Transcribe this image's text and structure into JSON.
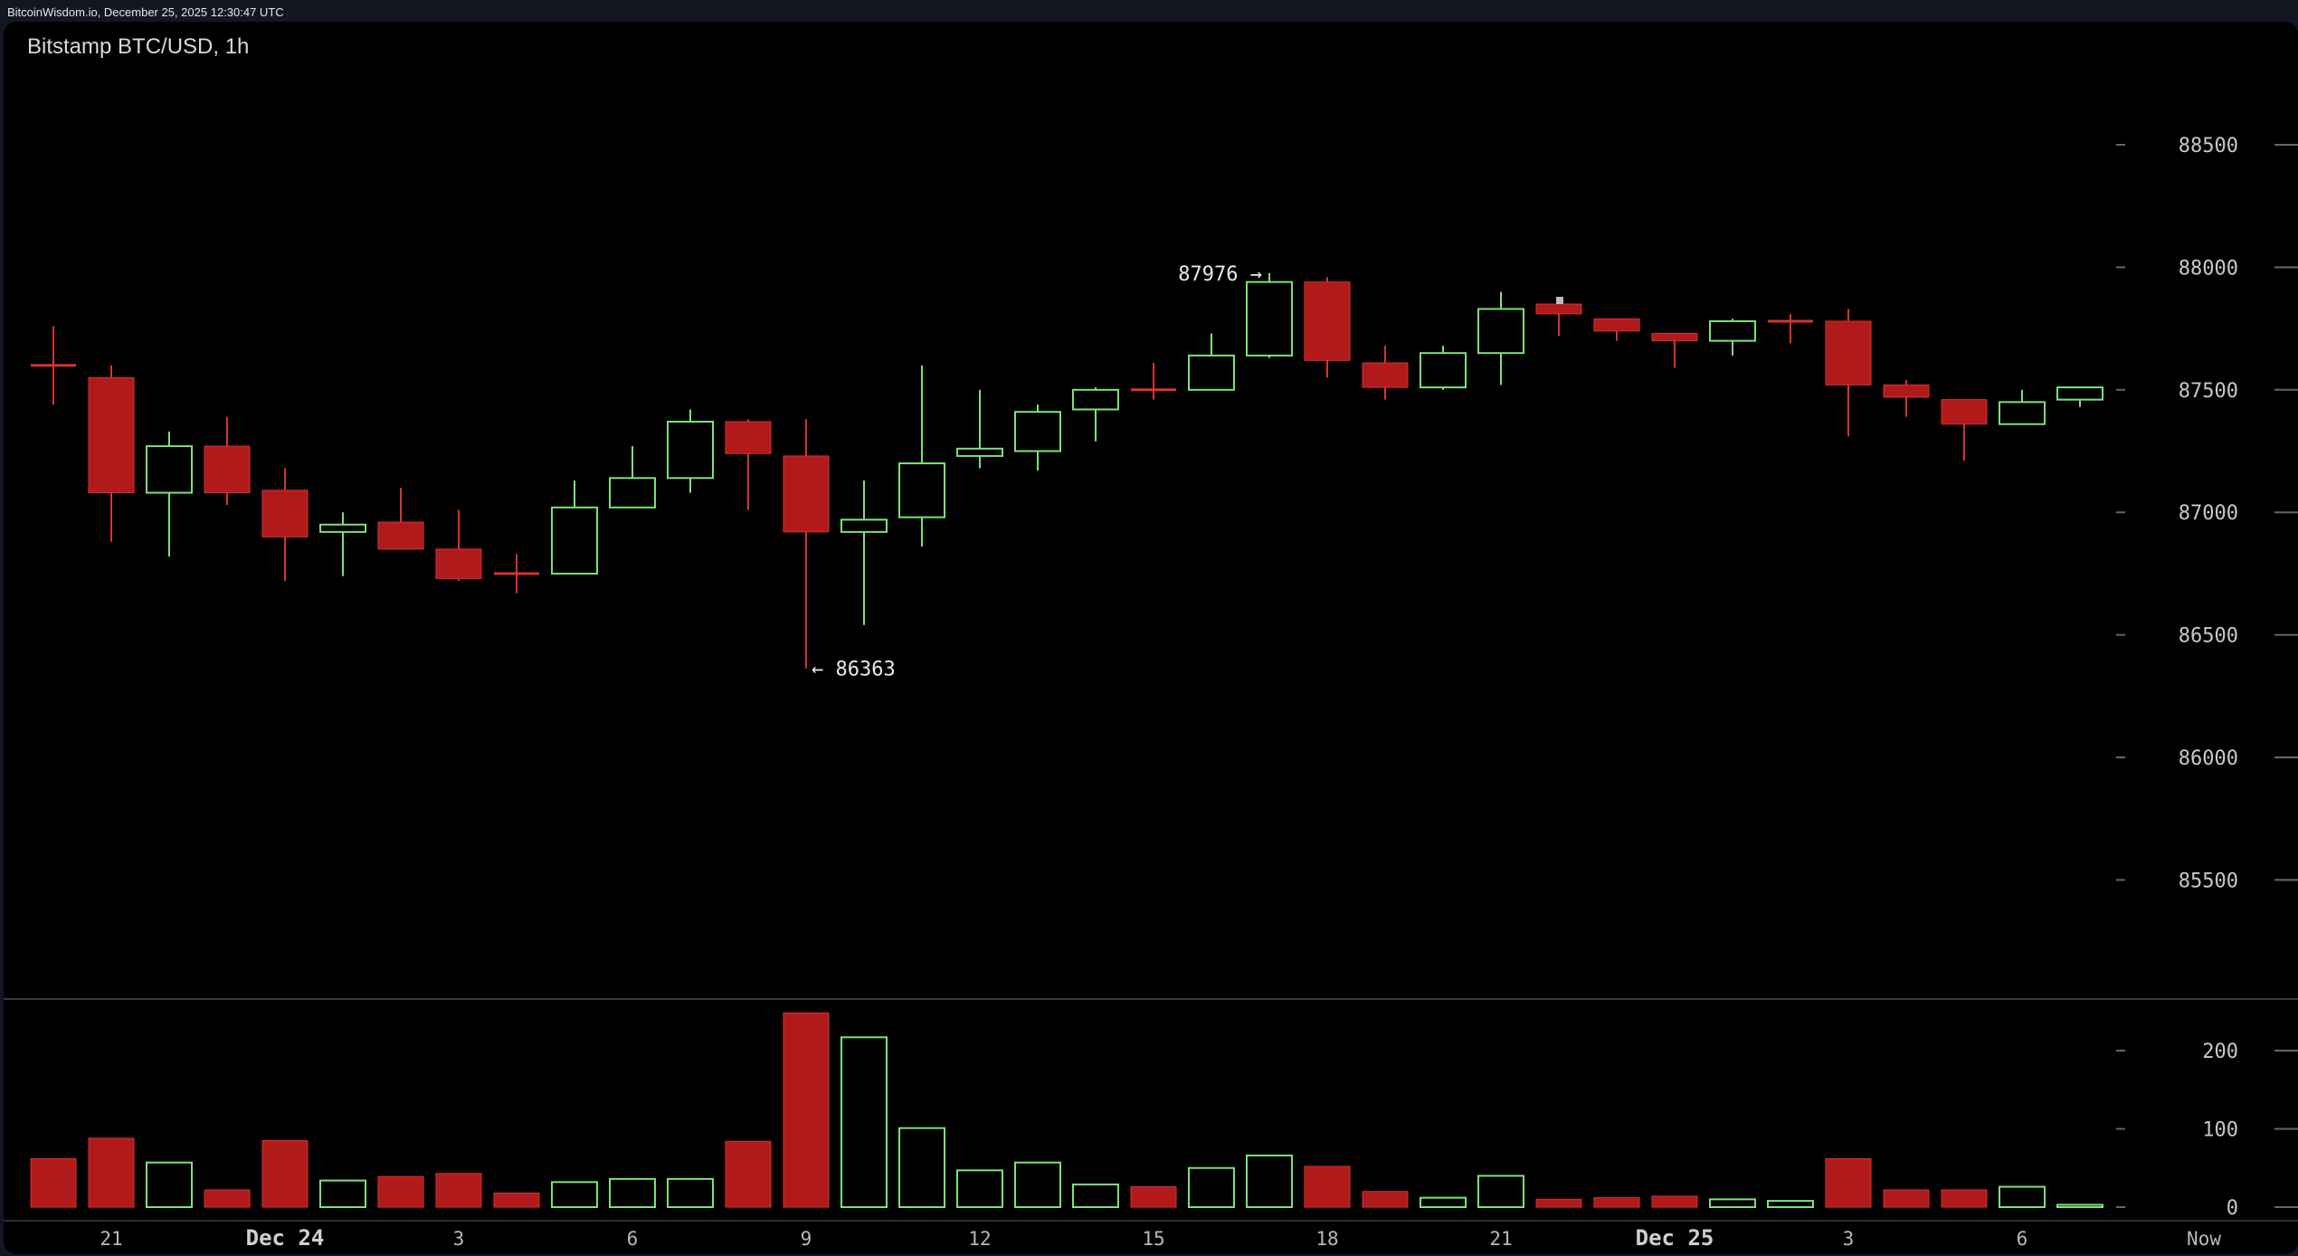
{
  "header": {
    "status_text": "BitcoinWisdom.io, December 25, 2025 12:30:47 UTC"
  },
  "chart": {
    "title": "Bitstamp BTC/USD, 1h"
  },
  "colors": {
    "up": "#7ee07a",
    "down": "#b01a1a",
    "down_edge": "#d83232",
    "axis_text": "#c8c8c8",
    "background": "#000000"
  },
  "chart_data": [
    {
      "type": "candlestick",
      "title": "Bitstamp BTC/USD, 1h",
      "ylim": [
        85000,
        88800
      ],
      "y_ticks": [
        85500,
        86000,
        86500,
        87000,
        87500,
        88000,
        88500
      ],
      "x_tick_labels": [
        {
          "index": 1,
          "label": "21"
        },
        {
          "index": 4,
          "label": "Dec 24"
        },
        {
          "index": 7,
          "label": "3"
        },
        {
          "index": 10,
          "label": "6"
        },
        {
          "index": 13,
          "label": "9"
        },
        {
          "index": 16,
          "label": "12"
        },
        {
          "index": 19,
          "label": "15"
        },
        {
          "index": 22,
          "label": "18"
        },
        {
          "index": 25,
          "label": "21"
        },
        {
          "index": 28,
          "label": "Dec 25"
        },
        {
          "index": 31,
          "label": "3"
        },
        {
          "index": 34,
          "label": "6"
        },
        {
          "index": 37,
          "label": "Now"
        }
      ],
      "annotations": [
        {
          "text": "87976 →",
          "index": 21,
          "value": 87976,
          "side": "left"
        },
        {
          "text": "← 86363",
          "index": 13,
          "value": 86363,
          "side": "right"
        }
      ],
      "candles": [
        {
          "open": 87600,
          "high": 87760,
          "low": 87440,
          "close": 87600
        },
        {
          "open": 87550,
          "high": 87600,
          "low": 86880,
          "close": 87080
        },
        {
          "open": 87080,
          "high": 87330,
          "low": 86820,
          "close": 87270
        },
        {
          "open": 87270,
          "high": 87390,
          "low": 87030,
          "close": 87080
        },
        {
          "open": 87090,
          "high": 87180,
          "low": 86720,
          "close": 86900
        },
        {
          "open": 86920,
          "high": 87000,
          "low": 86740,
          "close": 86950
        },
        {
          "open": 86960,
          "high": 87100,
          "low": 86850,
          "close": 86850
        },
        {
          "open": 86850,
          "high": 87010,
          "low": 86720,
          "close": 86730
        },
        {
          "open": 86750,
          "high": 86830,
          "low": 86670,
          "close": 86750
        },
        {
          "open": 86750,
          "high": 87130,
          "low": 86750,
          "close": 87020
        },
        {
          "open": 87020,
          "high": 87270,
          "low": 87020,
          "close": 87140
        },
        {
          "open": 87140,
          "high": 87420,
          "low": 87080,
          "close": 87370
        },
        {
          "open": 87370,
          "high": 87380,
          "low": 87010,
          "close": 87240
        },
        {
          "open": 87230,
          "high": 87380,
          "low": 86363,
          "close": 86920
        },
        {
          "open": 86920,
          "high": 87130,
          "low": 86540,
          "close": 86970
        },
        {
          "open": 86980,
          "high": 87600,
          "low": 86860,
          "close": 87200
        },
        {
          "open": 87230,
          "high": 87500,
          "low": 87180,
          "close": 87260
        },
        {
          "open": 87250,
          "high": 87440,
          "low": 87170,
          "close": 87410
        },
        {
          "open": 87420,
          "high": 87510,
          "low": 87290,
          "close": 87500
        },
        {
          "open": 87500,
          "high": 87610,
          "low": 87460,
          "close": 87500
        },
        {
          "open": 87500,
          "high": 87730,
          "low": 87500,
          "close": 87640
        },
        {
          "open": 87640,
          "high": 87976,
          "low": 87630,
          "close": 87940
        },
        {
          "open": 87940,
          "high": 87960,
          "low": 87550,
          "close": 87620
        },
        {
          "open": 87610,
          "high": 87680,
          "low": 87460,
          "close": 87510
        },
        {
          "open": 87510,
          "high": 87680,
          "low": 87500,
          "close": 87650
        },
        {
          "open": 87650,
          "high": 87900,
          "low": 87520,
          "close": 87830
        },
        {
          "open": 87850,
          "high": 87860,
          "low": 87720,
          "close": 87810
        },
        {
          "open": 87790,
          "high": 87790,
          "low": 87700,
          "close": 87740
        },
        {
          "open": 87730,
          "high": 87730,
          "low": 87590,
          "close": 87700
        },
        {
          "open": 87700,
          "high": 87790,
          "low": 87640,
          "close": 87780
        },
        {
          "open": 87780,
          "high": 87810,
          "low": 87690,
          "close": 87780
        },
        {
          "open": 87780,
          "high": 87830,
          "low": 87310,
          "close": 87520
        },
        {
          "open": 87520,
          "high": 87540,
          "low": 87390,
          "close": 87470
        },
        {
          "open": 87460,
          "high": 87460,
          "low": 87210,
          "close": 87360
        },
        {
          "open": 87360,
          "high": 87500,
          "low": 87360,
          "close": 87450
        },
        {
          "open": 87460,
          "high": 87510,
          "low": 87430,
          "close": 87510
        }
      ]
    },
    {
      "type": "bar",
      "title": "",
      "ylim": [
        0,
        250
      ],
      "y_ticks": [
        0,
        100,
        200
      ],
      "values": [
        62,
        88,
        57,
        22,
        85,
        34,
        39,
        43,
        18,
        32,
        36,
        36,
        84,
        248,
        217,
        101,
        47,
        57,
        29,
        26,
        50,
        66,
        52,
        20,
        12,
        40,
        10,
        12,
        14,
        10,
        8,
        62,
        22,
        22,
        26,
        3
      ],
      "directions": [
        "down",
        "down",
        "up",
        "down",
        "down",
        "up",
        "down",
        "down",
        "down",
        "up",
        "up",
        "up",
        "down",
        "down",
        "up",
        "up",
        "up",
        "up",
        "up",
        "down",
        "up",
        "up",
        "down",
        "down",
        "up",
        "up",
        "down",
        "down",
        "down",
        "up",
        "up",
        "down",
        "down",
        "down",
        "up",
        "up"
      ]
    }
  ]
}
